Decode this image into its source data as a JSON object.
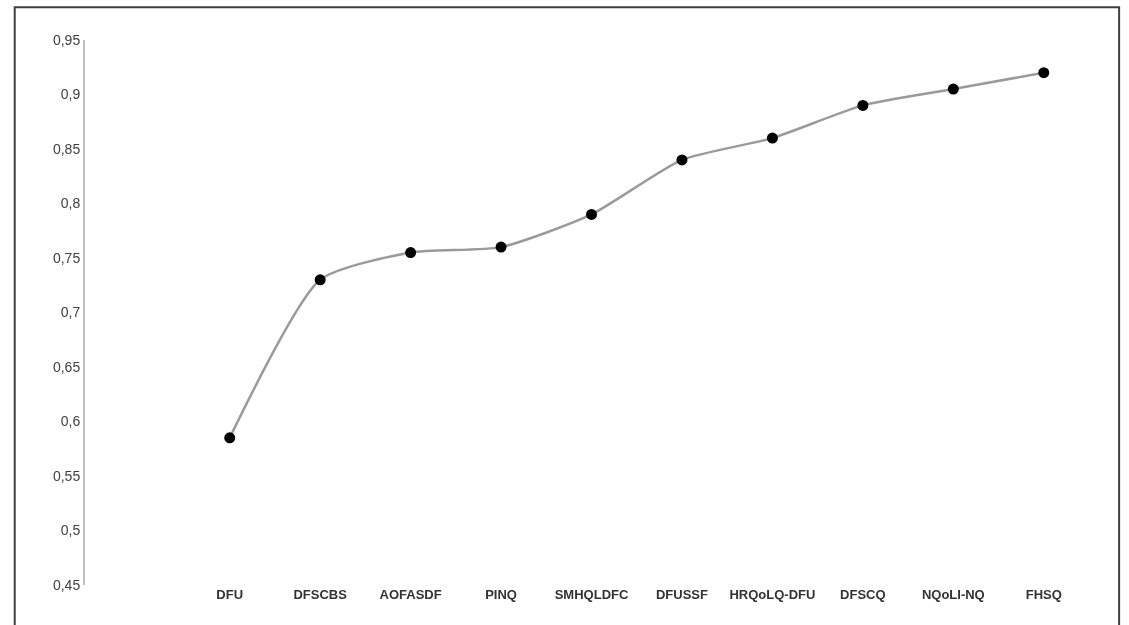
{
  "chart_data": {
    "type": "line",
    "categories": [
      "DFU",
      "DFSCBS",
      "AOFASDF",
      "PINQ",
      "SMHQLDFC",
      "DFUSSF",
      "HRQoLQ-DFU",
      "DFSCQ",
      "NQoLI-NQ",
      "FHSQ"
    ],
    "series": [
      {
        "color": "#9a9a9a",
        "values": [
          0.585,
          0.73,
          0.755,
          0.76,
          0.79,
          0.84,
          0.86,
          0.89,
          0.905,
          0.92
        ]
      }
    ],
    "ylim": [
      0.45,
      0.95
    ],
    "yticks": [
      {
        "value": 0.45,
        "label": "0,45"
      },
      {
        "value": 0.5,
        "label": "0,5"
      },
      {
        "value": 0.55,
        "label": "0,55"
      },
      {
        "value": 0.6,
        "label": "0,6"
      },
      {
        "value": 0.65,
        "label": "0,65"
      },
      {
        "value": 0.7,
        "label": "0,7"
      },
      {
        "value": 0.75,
        "label": "0,75"
      },
      {
        "value": 0.8,
        "label": "0,8"
      },
      {
        "value": 0.85,
        "label": "0,85"
      },
      {
        "value": 0.9,
        "label": "0,9"
      },
      {
        "value": 0.95,
        "label": "0,95"
      }
    ],
    "marker": "circle",
    "line_style": "solid"
  }
}
